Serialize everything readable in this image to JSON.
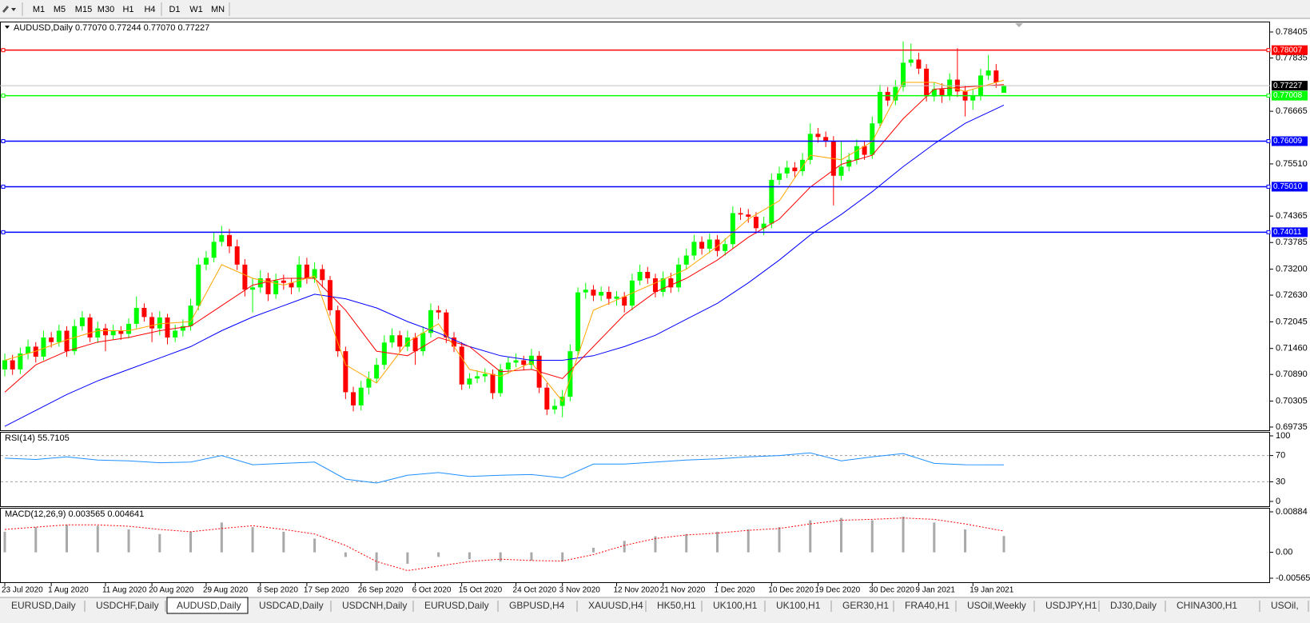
{
  "toolbar": {
    "timeframes": [
      "M1",
      "M5",
      "M15",
      "M30",
      "H1",
      "H4",
      "D1",
      "W1",
      "MN"
    ]
  },
  "chart_data": [
    {
      "type": "candlestick",
      "title": "AUDUSD,Daily  0.77070 0.77244 0.77070 0.77227",
      "up_color": "#00ff00",
      "down_color": "#ff0000",
      "categories": [
        "23 Jul 2020",
        null,
        null,
        null,
        null,
        null,
        "1 Aug 2020",
        null,
        null,
        null,
        null,
        null,
        null,
        "11 Aug 2020",
        null,
        null,
        null,
        null,
        null,
        "20 Aug 2020",
        null,
        null,
        null,
        null,
        null,
        null,
        "29 Aug 2020",
        null,
        null,
        null,
        null,
        null,
        null,
        "8 Sep 2020",
        null,
        null,
        null,
        null,
        null,
        "17 Sep 2020",
        null,
        null,
        null,
        null,
        null,
        null,
        "26 Sep 2020",
        null,
        null,
        null,
        null,
        null,
        null,
        "6 Oct 2020",
        null,
        null,
        null,
        null,
        null,
        "15 Oct 2020",
        null,
        null,
        null,
        null,
        null,
        null,
        "24 Oct 2020",
        null,
        null,
        null,
        null,
        null,
        "3 Nov 2020",
        null,
        null,
        null,
        null,
        null,
        null,
        "12 Nov 2020",
        null,
        null,
        null,
        null,
        null,
        "21 Nov 2020",
        null,
        null,
        null,
        null,
        null,
        null,
        "1 Dec 2020",
        null,
        null,
        null,
        null,
        null,
        null,
        "10 Dec 2020",
        null,
        null,
        null,
        null,
        null,
        "19 Dec 2020",
        null,
        null,
        null,
        null,
        null,
        null,
        "30 Dec 2020",
        null,
        null,
        null,
        null,
        null,
        "9 Jan 2021",
        null,
        null,
        null,
        null,
        null,
        null,
        "19 Jan 2021",
        null,
        null,
        null,
        null
      ],
      "open": [
        0.71,
        0.712,
        0.71,
        0.7135,
        0.715,
        0.7128,
        0.717,
        0.716,
        0.7185,
        0.714,
        0.7195,
        0.7214,
        0.717,
        0.719,
        0.7175,
        0.7185,
        0.7178,
        0.72,
        0.7235,
        0.7215,
        0.719,
        0.7214,
        0.717,
        0.7185,
        0.7195,
        0.724,
        0.733,
        0.7345,
        0.738,
        0.7395,
        0.737,
        0.733,
        0.7275,
        0.728,
        0.73,
        0.7265,
        0.7295,
        0.729,
        0.728,
        0.733,
        0.73,
        0.732,
        0.7296,
        0.723,
        0.714,
        0.705,
        0.7021,
        0.706,
        0.708,
        0.711,
        0.7159,
        0.7175,
        0.715,
        0.717,
        0.714,
        0.718,
        0.723,
        0.7225,
        0.717,
        0.715,
        0.7067,
        0.708,
        0.7085,
        0.709,
        0.7048,
        0.71,
        0.7115,
        0.712,
        0.711,
        0.713,
        0.706,
        0.7012,
        0.702,
        0.704,
        0.714,
        0.7269,
        0.7275,
        0.7262,
        0.727,
        0.7255,
        0.726,
        0.724,
        0.7295,
        0.7314,
        0.73,
        0.727,
        0.73,
        0.728,
        0.733,
        0.735,
        0.738,
        0.7365,
        0.7385,
        0.736,
        0.7375,
        0.7443,
        0.744,
        0.7435,
        0.741,
        0.742,
        0.7516,
        0.753,
        0.7543,
        0.7535,
        0.756,
        0.7617,
        0.761,
        0.76,
        0.7525,
        0.7545,
        0.756,
        0.759,
        0.7571,
        0.764,
        0.7709,
        0.769,
        0.772,
        0.7773,
        0.778,
        0.776,
        0.7699,
        0.7715,
        0.77,
        0.7736,
        0.771,
        0.769,
        0.77,
        0.7745,
        0.7756,
        0.7707
      ],
      "high": [
        0.7135,
        0.7132,
        0.7148,
        0.7165,
        0.716,
        0.7185,
        0.7182,
        0.7198,
        0.7195,
        0.721,
        0.7228,
        0.7222,
        0.7205,
        0.72,
        0.7198,
        0.7195,
        0.7212,
        0.726,
        0.7245,
        0.7225,
        0.7228,
        0.7222,
        0.7198,
        0.721,
        0.7255,
        0.7345,
        0.736,
        0.74,
        0.7415,
        0.7408,
        0.7385,
        0.7342,
        0.73,
        0.7318,
        0.7312,
        0.731,
        0.7308,
        0.73,
        0.7348,
        0.7345,
        0.7335,
        0.733,
        0.7305,
        0.724,
        0.715,
        0.7062,
        0.7075,
        0.7095,
        0.7125,
        0.7175,
        0.719,
        0.7185,
        0.7185,
        0.718,
        0.7195,
        0.7245,
        0.724,
        0.7232,
        0.7182,
        0.716,
        0.7092,
        0.7098,
        0.7102,
        0.71,
        0.7112,
        0.7128,
        0.7135,
        0.713,
        0.7145,
        0.714,
        0.707,
        0.7035,
        0.7055,
        0.7155,
        0.728,
        0.729,
        0.7285,
        0.7282,
        0.7282,
        0.7272,
        0.727,
        0.731,
        0.733,
        0.7325,
        0.731,
        0.7315,
        0.7312,
        0.7345,
        0.7365,
        0.7395,
        0.7392,
        0.7398,
        0.7395,
        0.7388,
        0.7458,
        0.7455,
        0.7452,
        0.7445,
        0.7435,
        0.753,
        0.7545,
        0.7558,
        0.7555,
        0.7575,
        0.764,
        0.763,
        0.7622,
        0.7612,
        0.76,
        0.7575,
        0.7605,
        0.7602,
        0.7655,
        0.7725,
        0.772,
        0.7735,
        0.782,
        0.7815,
        0.7795,
        0.777,
        0.773,
        0.7728,
        0.775,
        0.7805,
        0.7722,
        0.7715,
        0.776,
        0.779,
        0.777,
        0.77244
      ],
      "low": [
        0.7085,
        0.7088,
        0.709,
        0.7122,
        0.7115,
        0.712,
        0.7148,
        0.715,
        0.7128,
        0.7132,
        0.7185,
        0.716,
        0.7158,
        0.714,
        0.7165,
        0.7165,
        0.7168,
        0.719,
        0.7205,
        0.716,
        0.7175,
        0.7155,
        0.716,
        0.7172,
        0.7185,
        0.723,
        0.7318,
        0.7335,
        0.737,
        0.7355,
        0.7318,
        0.726,
        0.7225,
        0.7268,
        0.725,
        0.7255,
        0.7275,
        0.7265,
        0.727,
        0.7288,
        0.729,
        0.728,
        0.7218,
        0.7128,
        0.7035,
        0.7008,
        0.701,
        0.7045,
        0.707,
        0.71,
        0.7148,
        0.7138,
        0.714,
        0.711,
        0.713,
        0.717,
        0.721,
        0.7158,
        0.7138,
        0.7055,
        0.7058,
        0.707,
        0.7072,
        0.7035,
        0.704,
        0.709,
        0.7105,
        0.7098,
        0.71,
        0.7048,
        0.7,
        0.7002,
        0.6995,
        0.703,
        0.713,
        0.7255,
        0.725,
        0.725,
        0.7242,
        0.724,
        0.7225,
        0.723,
        0.7285,
        0.7288,
        0.7258,
        0.726,
        0.7268,
        0.727,
        0.732,
        0.734,
        0.7352,
        0.7355,
        0.7348,
        0.735,
        0.7365,
        0.7428,
        0.7422,
        0.7398,
        0.7395,
        0.741,
        0.7505,
        0.752,
        0.7522,
        0.7525,
        0.755,
        0.7598,
        0.7588,
        0.746,
        0.7515,
        0.7535,
        0.755,
        0.756,
        0.7562,
        0.763,
        0.7678,
        0.768,
        0.771,
        0.7765,
        0.7748,
        0.7688,
        0.7688,
        0.7685,
        0.769,
        0.7698,
        0.7655,
        0.767,
        0.769,
        0.7735,
        0.7718,
        0.7707
      ],
      "close": [
        0.712,
        0.71,
        0.7135,
        0.715,
        0.7128,
        0.717,
        0.716,
        0.7185,
        0.714,
        0.7195,
        0.7214,
        0.717,
        0.719,
        0.7175,
        0.7185,
        0.7178,
        0.72,
        0.7235,
        0.7215,
        0.719,
        0.7214,
        0.717,
        0.7185,
        0.7195,
        0.724,
        0.733,
        0.7345,
        0.738,
        0.7395,
        0.737,
        0.733,
        0.7275,
        0.728,
        0.73,
        0.7265,
        0.7295,
        0.729,
        0.728,
        0.733,
        0.73,
        0.732,
        0.7296,
        0.723,
        0.714,
        0.705,
        0.7021,
        0.706,
        0.708,
        0.711,
        0.7159,
        0.7175,
        0.715,
        0.717,
        0.714,
        0.718,
        0.723,
        0.7225,
        0.717,
        0.715,
        0.7067,
        0.708,
        0.7085,
        0.709,
        0.7048,
        0.71,
        0.7115,
        0.712,
        0.711,
        0.713,
        0.706,
        0.7012,
        0.702,
        0.704,
        0.714,
        0.7269,
        0.7275,
        0.7262,
        0.727,
        0.7255,
        0.726,
        0.724,
        0.7295,
        0.7314,
        0.73,
        0.727,
        0.73,
        0.728,
        0.733,
        0.735,
        0.738,
        0.7365,
        0.7385,
        0.736,
        0.7375,
        0.7443,
        0.744,
        0.7435,
        0.741,
        0.742,
        0.7516,
        0.753,
        0.7543,
        0.7535,
        0.756,
        0.7617,
        0.761,
        0.76,
        0.7525,
        0.7545,
        0.756,
        0.759,
        0.7571,
        0.764,
        0.7709,
        0.769,
        0.772,
        0.7773,
        0.778,
        0.776,
        0.7699,
        0.7715,
        0.77,
        0.7736,
        0.771,
        0.769,
        0.77,
        0.7745,
        0.7756,
        0.773,
        0.77227
      ],
      "x": [
        0,
        4,
        8,
        12,
        16,
        20,
        24,
        28,
        32,
        36,
        40,
        44,
        48,
        52,
        56,
        60,
        64,
        68,
        72,
        76,
        80,
        84,
        88,
        92,
        96,
        100,
        104,
        108,
        112,
        116,
        120,
        124,
        129
      ],
      "series": [
        {
          "color": "#0000ff",
          "values": [
            0.6975,
            0.701,
            0.7045,
            0.7075,
            0.71,
            0.7125,
            0.715,
            0.7185,
            0.7215,
            0.724,
            0.7265,
            0.7255,
            0.7235,
            0.7205,
            0.718,
            0.715,
            0.713,
            0.712,
            0.712,
            0.713,
            0.715,
            0.7175,
            0.721,
            0.7245,
            0.729,
            0.734,
            0.7395,
            0.744,
            0.749,
            0.7545,
            0.7595,
            0.764,
            0.768
          ]
        },
        {
          "color": "#ff0000",
          "values": [
            0.705,
            0.711,
            0.714,
            0.716,
            0.717,
            0.7185,
            0.7195,
            0.724,
            0.7285,
            0.73,
            0.73,
            0.723,
            0.714,
            0.713,
            0.717,
            0.715,
            0.7095,
            0.71,
            0.708,
            0.715,
            0.722,
            0.727,
            0.73,
            0.734,
            0.739,
            0.743,
            0.75,
            0.755,
            0.757,
            0.765,
            0.7715,
            0.772,
            0.7725
          ]
        },
        {
          "color": "#ffa500",
          "values": [
            0.712,
            0.714,
            0.7165,
            0.7185,
            0.7185,
            0.72,
            0.7205,
            0.733,
            0.73,
            0.7285,
            0.7305,
            0.711,
            0.707,
            0.716,
            0.72,
            0.71,
            0.7085,
            0.7115,
            0.703,
            0.723,
            0.726,
            0.729,
            0.732,
            0.737,
            0.743,
            0.747,
            0.757,
            0.756,
            0.76,
            0.773,
            0.773,
            0.771,
            0.7735
          ]
        }
      ],
      "levels": [
        {
          "value": 0.78007,
          "label": "0.78007",
          "color": "#ff0000"
        },
        {
          "value": 0.77008,
          "label": "0.77008",
          "color": "#00ff00"
        },
        {
          "value": 0.76009,
          "label": "0.76009",
          "color": "#0000ff"
        },
        {
          "value": 0.7501,
          "label": "0.75010",
          "color": "#0000ff"
        },
        {
          "value": 0.74011,
          "label": "0.74011",
          "color": "#0000ff"
        }
      ],
      "current_price": 0.77227,
      "ylim": [
        0.69735,
        0.78405
      ],
      "yticks": [
        0.78405,
        0.77835,
        0.76665,
        {
          "value": 0.7551,
          "label": "0.75510"
        },
        0.74365,
        0.73785,
        {
          "value": 0.732,
          "label": "0.73200"
        },
        {
          "value": 0.7263,
          "label": "0.72630"
        },
        0.72045,
        {
          "value": 0.7146,
          "label": "0.71460"
        },
        {
          "value": 0.7089,
          "label": "0.70890"
        },
        0.70305,
        0.69735
      ]
    },
    {
      "type": "line",
      "title": "RSI(14) 55.7105",
      "color": "#1e90ff",
      "x": [
        0,
        4,
        8,
        12,
        16,
        20,
        24,
        28,
        32,
        36,
        40,
        44,
        48,
        52,
        56,
        60,
        64,
        68,
        72,
        76,
        80,
        84,
        88,
        92,
        96,
        100,
        104,
        108,
        112,
        116,
        120,
        124,
        129
      ],
      "values": [
        66,
        64,
        68,
        63,
        62,
        59,
        60,
        70,
        56,
        58,
        60,
        34,
        28,
        40,
        44,
        38,
        40,
        41,
        36,
        57,
        57,
        60,
        63,
        65,
        68,
        70,
        74,
        62,
        68,
        73,
        58,
        56,
        55.7105
      ],
      "levels": [
        70,
        30
      ],
      "ylim": [
        0,
        100
      ],
      "yticks": [
        100,
        70,
        30,
        0
      ]
    },
    {
      "type": "macd",
      "title": "MACD(12,26,9) 0.003565 0.004641",
      "histogram_color": "#a9a9a9",
      "signal_color": "#ff0000",
      "x": [
        0,
        4,
        8,
        12,
        16,
        20,
        24,
        28,
        32,
        36,
        40,
        44,
        48,
        52,
        56,
        60,
        64,
        68,
        72,
        76,
        80,
        84,
        88,
        92,
        96,
        100,
        104,
        108,
        112,
        116,
        120,
        124,
        129
      ],
      "histogram": [
        0.0045,
        0.0055,
        0.006,
        0.0058,
        0.005,
        0.004,
        0.0045,
        0.0065,
        0.0055,
        0.0045,
        0.003,
        -0.001,
        -0.004,
        -0.0025,
        -0.001,
        -0.0015,
        -0.002,
        -0.0018,
        -0.002,
        0.001,
        0.0025,
        0.0035,
        0.004,
        0.0045,
        0.005,
        0.0055,
        0.007,
        0.0075,
        0.007,
        0.0078,
        0.0065,
        0.005,
        0.003565
      ],
      "signal": [
        0.005,
        0.0055,
        0.006,
        0.006,
        0.0057,
        0.005,
        0.0045,
        0.0052,
        0.0058,
        0.005,
        0.004,
        0.0015,
        -0.002,
        -0.004,
        -0.003,
        -0.002,
        -0.0015,
        -0.0018,
        -0.0019,
        -0.0005,
        0.0015,
        0.003,
        0.0038,
        0.0042,
        0.0048,
        0.0052,
        0.0062,
        0.007,
        0.0072,
        0.0075,
        0.0072,
        0.0062,
        0.004641
      ],
      "ylim": [
        -0.005651,
        0.00884
      ],
      "yticks": [
        0.00884,
        {
          "value": 0,
          "label": "0.00"
        },
        -0.005651
      ]
    }
  ],
  "tabs": [
    "EURUSD,Daily",
    "USDCHF,Daily",
    "AUDUSD,Daily",
    "USDCAD,Daily",
    "USDCNH,Daily",
    "EURUSD,Daily",
    "GBPUSD,H4",
    "XAUUSD,H4",
    "HK50,H1",
    "UK100,H1",
    "UK100,H1",
    "GER30,H1",
    "FRA40,H1",
    "USOil,Weekly",
    "USDJPY,H1",
    "DJ30,Daily",
    "CHINA300,H1",
    "USOil,"
  ],
  "active_tab": 2
}
